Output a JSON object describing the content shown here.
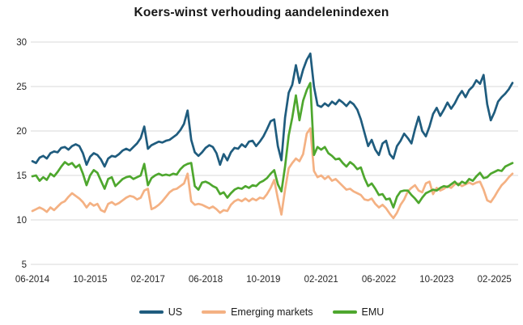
{
  "chart_data": {
    "type": "line",
    "title": "Koers-winst verhouding aandelenindexen",
    "xlabel": "",
    "ylabel": "",
    "ylim": [
      5,
      30
    ],
    "y_ticks": [
      30,
      25,
      20,
      15,
      10,
      5
    ],
    "grid": "horizontal",
    "legend_position": "bottom-center",
    "x_frequency": "monthly",
    "x_start": "06-2014",
    "x_end": "07-2025",
    "x_ticks": [
      {
        "label": "06-2014",
        "month_index": 0
      },
      {
        "label": "10-2015",
        "month_index": 16
      },
      {
        "label": "02-2017",
        "month_index": 32
      },
      {
        "label": "06-2018",
        "month_index": 48
      },
      {
        "label": "10-2019",
        "month_index": 64
      },
      {
        "label": "02-2021",
        "month_index": 80
      },
      {
        "label": "06-2022",
        "month_index": 96
      },
      {
        "label": "10-2023",
        "month_index": 112
      },
      {
        "label": "02-2025",
        "month_index": 128
      }
    ],
    "series": [
      {
        "name": "US",
        "color": "#1f5c7e",
        "values": [
          16.6,
          16.4,
          17.0,
          17.2,
          16.9,
          17.5,
          17.7,
          17.6,
          18.1,
          18.2,
          17.9,
          18.3,
          18.5,
          18.3,
          17.5,
          16.2,
          17.1,
          17.5,
          17.3,
          16.8,
          16.0,
          16.9,
          17.2,
          17.1,
          17.4,
          17.8,
          18.0,
          17.8,
          18.2,
          18.6,
          19.2,
          20.5,
          18.0,
          18.4,
          18.6,
          18.8,
          18.7,
          18.9,
          19.0,
          19.3,
          19.6,
          20.1,
          20.8,
          22.3,
          19.0,
          17.6,
          17.2,
          17.6,
          18.1,
          18.4,
          18.2,
          17.5,
          16.2,
          17.4,
          16.7,
          17.6,
          18.1,
          18.0,
          18.5,
          18.2,
          18.8,
          18.9,
          18.3,
          18.8,
          19.4,
          20.2,
          21.1,
          21.3,
          18.3,
          16.7,
          21.5,
          24.3,
          25.2,
          27.4,
          25.4,
          26.9,
          28.0,
          28.7,
          25.0,
          22.9,
          22.7,
          23.1,
          22.8,
          23.3,
          23.0,
          23.5,
          23.2,
          22.8,
          23.3,
          23.0,
          22.4,
          21.3,
          19.8,
          18.3,
          19.0,
          17.9,
          17.3,
          18.6,
          18.9,
          17.4,
          16.9,
          18.3,
          18.9,
          19.7,
          19.2,
          18.6,
          20.2,
          21.6,
          20.0,
          19.4,
          20.5,
          21.9,
          22.6,
          21.7,
          22.4,
          23.2,
          22.5,
          23.1,
          23.9,
          24.5,
          23.8,
          24.6,
          25.0,
          25.7,
          25.3,
          26.3,
          23.0,
          21.2,
          22.1,
          23.3,
          23.8,
          24.2,
          24.7,
          25.4
        ]
      },
      {
        "name": "Emerging markets",
        "color": "#f4b183",
        "values": [
          11.0,
          11.2,
          11.4,
          11.2,
          10.9,
          11.4,
          11.1,
          11.5,
          11.9,
          12.1,
          12.6,
          13.0,
          12.7,
          12.4,
          12.0,
          11.4,
          11.9,
          11.6,
          11.8,
          11.1,
          10.9,
          11.8,
          12.0,
          11.7,
          11.9,
          12.2,
          12.5,
          12.7,
          12.6,
          12.3,
          12.5,
          13.3,
          13.5,
          11.2,
          11.4,
          11.7,
          12.1,
          12.6,
          13.1,
          13.4,
          13.5,
          13.8,
          14.1,
          15.2,
          12.1,
          11.7,
          11.8,
          11.7,
          11.5,
          11.3,
          11.5,
          11.2,
          10.8,
          11.1,
          11.0,
          11.7,
          12.1,
          12.3,
          12.1,
          12.4,
          12.1,
          12.4,
          12.2,
          12.5,
          12.4,
          12.9,
          13.6,
          14.5,
          12.4,
          10.6,
          13.4,
          15.8,
          16.4,
          16.9,
          16.6,
          17.4,
          19.7,
          20.3,
          15.5,
          14.8,
          15.0,
          14.6,
          14.9,
          14.4,
          14.6,
          14.2,
          13.8,
          13.4,
          13.5,
          13.2,
          13.0,
          12.8,
          12.3,
          12.2,
          12.4,
          11.8,
          11.4,
          11.7,
          11.3,
          10.7,
          10.2,
          10.8,
          11.7,
          12.3,
          13.2,
          13.6,
          13.9,
          13.3,
          13.1,
          14.1,
          14.3,
          12.9,
          13.6,
          13.3,
          13.5,
          13.8,
          13.6,
          14.0,
          14.1,
          13.8,
          14.0,
          14.2,
          14.0,
          14.2,
          14.3,
          13.4,
          12.2,
          12.0,
          12.6,
          13.3,
          13.9,
          14.3,
          14.8,
          15.2
        ]
      },
      {
        "name": "EMU",
        "color": "#4ea72e",
        "values": [
          14.9,
          15.0,
          14.4,
          14.8,
          14.5,
          15.2,
          14.9,
          15.4,
          16.0,
          16.5,
          16.2,
          16.4,
          15.9,
          16.2,
          15.2,
          13.9,
          15.0,
          15.6,
          15.3,
          14.4,
          13.5,
          14.6,
          14.8,
          13.8,
          14.2,
          14.6,
          14.8,
          14.9,
          14.6,
          14.8,
          15.0,
          16.3,
          13.9,
          14.7,
          15.0,
          15.2,
          15.0,
          15.1,
          15.0,
          15.2,
          15.1,
          15.7,
          16.1,
          16.3,
          16.4,
          13.8,
          13.4,
          14.2,
          14.3,
          14.1,
          13.8,
          13.6,
          12.9,
          13.1,
          12.5,
          13.0,
          13.4,
          13.6,
          13.5,
          13.8,
          13.6,
          13.9,
          13.8,
          14.2,
          14.4,
          14.7,
          15.2,
          15.6,
          14.0,
          13.2,
          16.0,
          19.5,
          21.5,
          24.0,
          21.2,
          23.4,
          24.6,
          25.4,
          17.3,
          18.2,
          17.9,
          18.2,
          17.5,
          17.2,
          16.8,
          16.9,
          16.4,
          16.0,
          16.5,
          16.2,
          15.7,
          15.9,
          14.7,
          13.8,
          14.1,
          13.5,
          12.8,
          12.9,
          12.3,
          12.4,
          11.4,
          12.6,
          13.2,
          13.3,
          13.3,
          12.8,
          12.4,
          11.9,
          12.5,
          13.0,
          13.2,
          13.4,
          13.3,
          13.6,
          13.8,
          13.7,
          14.0,
          14.3,
          13.9,
          14.3,
          14.1,
          14.6,
          14.4,
          14.9,
          15.3,
          14.7,
          14.8,
          15.2,
          15.4,
          15.6,
          15.5,
          16.0,
          16.2,
          16.4
        ]
      }
    ],
    "style": {
      "grid_color": "#d9d9d9",
      "axis_label_color": "#262626",
      "title_color": "#171717",
      "background": "#ffffff",
      "line_width": 2.7
    }
  }
}
